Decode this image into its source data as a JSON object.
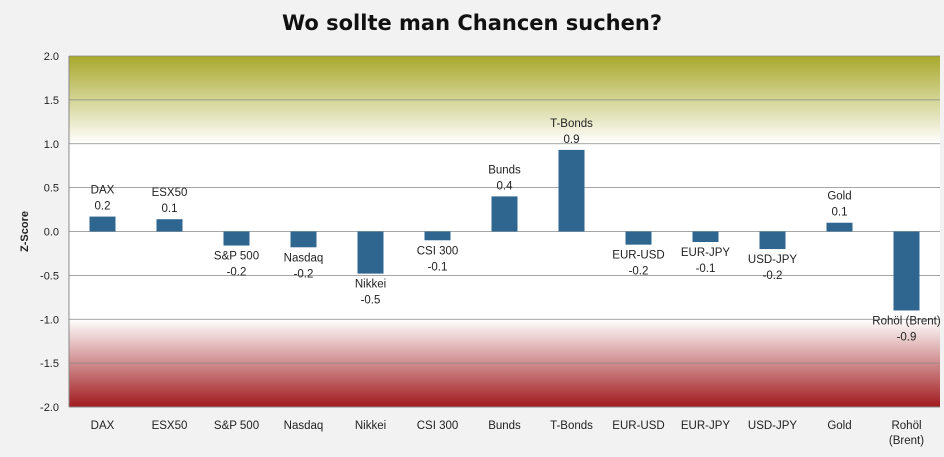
{
  "chart_data": {
    "type": "bar",
    "title": "Wo sollte man Chancen suchen?",
    "ylabel": "Z-Score",
    "xlabel": "",
    "ylim": [
      -2.0,
      2.0
    ],
    "yticks": [
      "2.0",
      "1.5",
      "1.0",
      "0.5",
      "0.0",
      "-0.5",
      "-1.0",
      "-1.5",
      "-2.0"
    ],
    "ytick_values": [
      2.0,
      1.5,
      1.0,
      0.5,
      0.0,
      -0.5,
      -1.0,
      -1.5,
      -2.0
    ],
    "grid": true,
    "legend": "none",
    "categories": [
      "DAX",
      "ESX50",
      "S&P 500",
      "Nasdaq",
      "Nikkei",
      "CSI 300",
      "Bunds",
      "T-Bonds",
      "EUR-USD",
      "EUR-JPY",
      "USD-JPY",
      "Gold",
      "Rohöl (Brent)"
    ],
    "category_axis_lines": [
      [
        "DAX"
      ],
      [
        "ESX50"
      ],
      [
        "S&P 500"
      ],
      [
        "Nasdaq"
      ],
      [
        "Nikkei"
      ],
      [
        "CSI 300"
      ],
      [
        "Bunds"
      ],
      [
        "T-Bonds"
      ],
      [
        "EUR-USD"
      ],
      [
        "EUR-JPY"
      ],
      [
        "USD-JPY"
      ],
      [
        "Gold"
      ],
      [
        "Rohöl",
        "(Brent)"
      ]
    ],
    "values": [
      0.17,
      0.14,
      -0.16,
      -0.18,
      -0.48,
      -0.1,
      0.4,
      0.93,
      -0.15,
      -0.12,
      -0.2,
      0.1,
      -0.9
    ],
    "value_labels": [
      "0.2",
      "0.1",
      "-0.2",
      "-0.2",
      "-0.5",
      "-0.1",
      "0.4",
      "0.9",
      "-0.2",
      "-0.1",
      "-0.2",
      "0.1",
      "-0.9"
    ],
    "colors": {
      "bar": "#2e6690",
      "plot_background": "#ffffff",
      "page_background": "#f2f2f2",
      "upper_band_top": "#a8a92b",
      "upper_band_bottom": "#ffffff",
      "lower_band_top": "#ffffff",
      "lower_band_bottom": "#a01a1e",
      "grid": "#888888"
    }
  }
}
